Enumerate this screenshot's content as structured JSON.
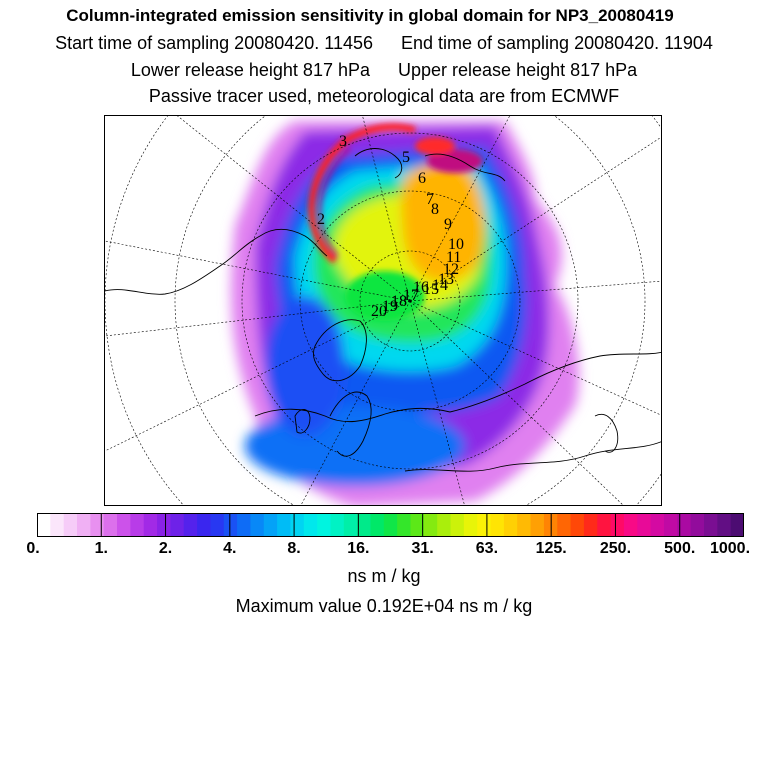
{
  "header": {
    "title": "Column-integrated emission sensitivity in global domain for NP3_20080419",
    "start_label": "Start time of sampling 20080420. 11456",
    "end_label": "End time of sampling 20080420. 11904",
    "lower_label": "Lower release height  817 hPa",
    "upper_label": "Upper release height  817 hPa",
    "note": "Passive tracer used, meteorological data are from ECMWF"
  },
  "chart_data": {
    "type": "heatmap",
    "projection": "polar stereographic, north pole",
    "colorbar": {
      "tick_labels": [
        "0.",
        "1.",
        "2.",
        "4.",
        "8.",
        "16.",
        "31.",
        "63.",
        "125.",
        "250.",
        "500.",
        "1000."
      ],
      "colors": [
        "#ffffff",
        "#fbe6fb",
        "#f6ccf8",
        "#f0b0f4",
        "#e890f0",
        "#dc70ec",
        "#cc52ea",
        "#b83ce8",
        "#a22ae6",
        "#8a22e6",
        "#6e22e8",
        "#5422ec",
        "#3a26ef",
        "#2838f2",
        "#1a52f4",
        "#0e6cf6",
        "#0888f7",
        "#04a2f7",
        "#00bcf6",
        "#00d4f2",
        "#00e8ec",
        "#00f4e0",
        "#00f2c4",
        "#00efa8",
        "#00ea8a",
        "#00e868",
        "#10e648",
        "#34e62a",
        "#5ce818",
        "#84ea10",
        "#aaee0c",
        "#ccf20a",
        "#e8f408",
        "#fbf206",
        "#ffe404",
        "#ffd004",
        "#ffba04",
        "#ffa004",
        "#ff8404",
        "#ff6604",
        "#ff4808",
        "#ff2a1a",
        "#ff1440",
        "#ff0a66",
        "#f80a86",
        "#e80a98",
        "#d40aa2",
        "#c00aa4",
        "#aa0aa2",
        "#920c9c",
        "#7a0e92",
        "#620e84",
        "#4c0c72"
      ],
      "units": "ns m / kg"
    },
    "maximum_value_label": "Maximum value  0.192E+04 ns m / kg",
    "maximum_value": 1920,
    "trajectory_labels": [
      "2",
      "3",
      "5",
      "6",
      "7",
      "8",
      "9",
      "10",
      "11",
      "12",
      "13",
      "14",
      "15",
      "16",
      "17",
      "18",
      "19",
      "20"
    ]
  }
}
